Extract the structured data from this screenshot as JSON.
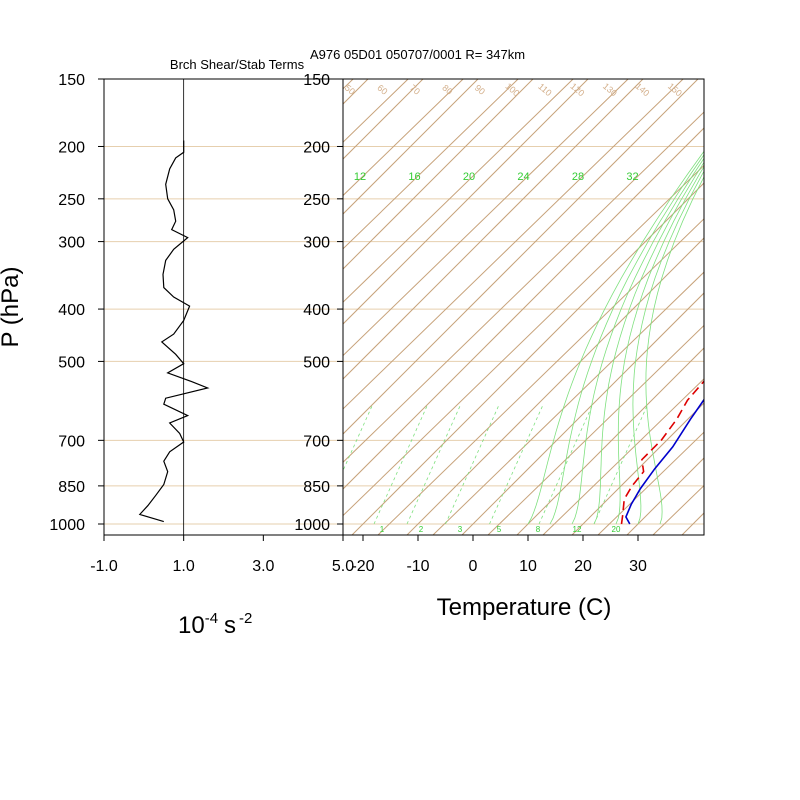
{
  "chart_data": [
    {
      "type": "line",
      "title": "Brch Shear/Stab Terms",
      "ylabel": "P (hPa)",
      "xlabel_base": "10",
      "xlabel_exp": "-4",
      "xlabel_unit": "s",
      "xlabel_unit_exp": "-2",
      "x_tick_labels": [
        "-1.0",
        "1.0",
        "3.0",
        "5.0"
      ],
      "x_ticks": [
        -1.0,
        1.0,
        3.0,
        5.0
      ],
      "xlim": [
        -1.0,
        5.0
      ],
      "ylim": [
        1050,
        150
      ],
      "y_ticks": [
        150,
        200,
        250,
        300,
        400,
        500,
        700,
        850,
        1000
      ],
      "y_tick_labels": [
        "150",
        "200",
        "250",
        "300",
        "400",
        "500",
        "700",
        "850",
        "1000"
      ],
      "zero_line_x": 1.0,
      "series": [
        {
          "color": "#000000",
          "points": [
            [
              1.0,
              195
            ],
            [
              1.0,
              205
            ],
            [
              0.8,
              210
            ],
            [
              0.65,
              220
            ],
            [
              0.55,
              235
            ],
            [
              0.6,
              250
            ],
            [
              0.75,
              262
            ],
            [
              0.8,
              275
            ],
            [
              0.7,
              285
            ],
            [
              1.1,
              295
            ],
            [
              0.75,
              310
            ],
            [
              0.55,
              325
            ],
            [
              0.48,
              345
            ],
            [
              0.5,
              365
            ],
            [
              0.75,
              380
            ],
            [
              1.15,
              395
            ],
            [
              1.0,
              420
            ],
            [
              0.75,
              445
            ],
            [
              0.45,
              460
            ],
            [
              0.8,
              485
            ],
            [
              1.0,
              505
            ],
            [
              0.6,
              525
            ],
            [
              1.2,
              545
            ],
            [
              1.6,
              560
            ],
            [
              0.55,
              585
            ],
            [
              0.5,
              600
            ],
            [
              1.1,
              630
            ],
            [
              0.65,
              650
            ],
            [
              0.9,
              680
            ],
            [
              1.0,
              705
            ],
            [
              0.65,
              735
            ],
            [
              0.5,
              765
            ],
            [
              0.6,
              800
            ],
            [
              0.5,
              845
            ],
            [
              0.3,
              885
            ],
            [
              0.1,
              925
            ],
            [
              -0.1,
              960
            ],
            [
              0.5,
              990
            ]
          ]
        }
      ]
    },
    {
      "type": "line",
      "title": "A976 05D01 050707/0001 R= 347km",
      "xlabel": "Temperature (C)",
      "x_tick_labels": [
        "-20",
        "-10",
        "0",
        "10",
        "20",
        "30"
      ],
      "x_ticks": [
        -20,
        -10,
        0,
        10,
        20,
        30
      ],
      "y_tick_labels": [
        "150",
        "200",
        "250",
        "300",
        "400",
        "500",
        "700",
        "850",
        "1000"
      ],
      "y_ticks": [
        150,
        200,
        250,
        300,
        400,
        500,
        700,
        850,
        1000
      ],
      "ylim": [
        1050,
        150
      ],
      "mixing_ratio_labels": [
        "12",
        "16",
        "20",
        "24",
        "28",
        "32"
      ],
      "mixing_ratio_bottom_labels": [
        "1",
        "2",
        "3",
        "5",
        "8",
        "12",
        "20"
      ],
      "adiabat_labels": [
        "50",
        "60",
        "70",
        "80",
        "90",
        "100",
        "110",
        "120",
        "130",
        "140",
        "150"
      ],
      "series": [
        {
          "name": "",
          "color": "#0000cc",
          "points": [
            [
              28.5,
              1000
            ],
            [
              26.5,
              970
            ],
            [
              25.2,
              920
            ],
            [
              24.0,
              860
            ],
            [
              23.0,
              790
            ],
            [
              22.3,
              720
            ],
            [
              20.5,
              640
            ],
            [
              19.2,
              580
            ],
            [
              19.0,
              530
            ],
            [
              18.5,
              480
            ],
            [
              16.8,
              440
            ],
            [
              15.9,
              400
            ],
            [
              14.0,
              365
            ],
            [
              11.5,
              320
            ],
            [
              10.7,
              300
            ],
            [
              9.5,
              270
            ],
            [
              7.0,
              235
            ],
            [
              4.0,
              205
            ],
            [
              1.0,
              180
            ]
          ]
        },
        {
          "name": "",
          "color": "#dd0000",
          "dashed": true,
          "points": [
            [
              27.0,
              1000
            ],
            [
              25.5,
              960
            ],
            [
              23.0,
              900
            ],
            [
              22.0,
              850
            ],
            [
              21.5,
              800
            ],
            [
              19.0,
              760
            ],
            [
              19.0,
              700
            ],
            [
              18.0,
              640
            ],
            [
              16.5,
              590
            ],
            [
              16.0,
              540
            ],
            [
              15.8,
              480
            ],
            [
              14.5,
              430
            ],
            [
              11.0,
              400
            ],
            [
              8.2,
              380
            ],
            [
              8.0,
              350
            ],
            [
              6.5,
              330
            ],
            [
              5.0,
              310
            ],
            [
              7.0,
              300
            ],
            [
              5.2,
              285
            ],
            [
              4.0,
              250
            ],
            [
              2.0,
              225
            ],
            [
              -0.5,
              210
            ]
          ]
        }
      ]
    }
  ]
}
